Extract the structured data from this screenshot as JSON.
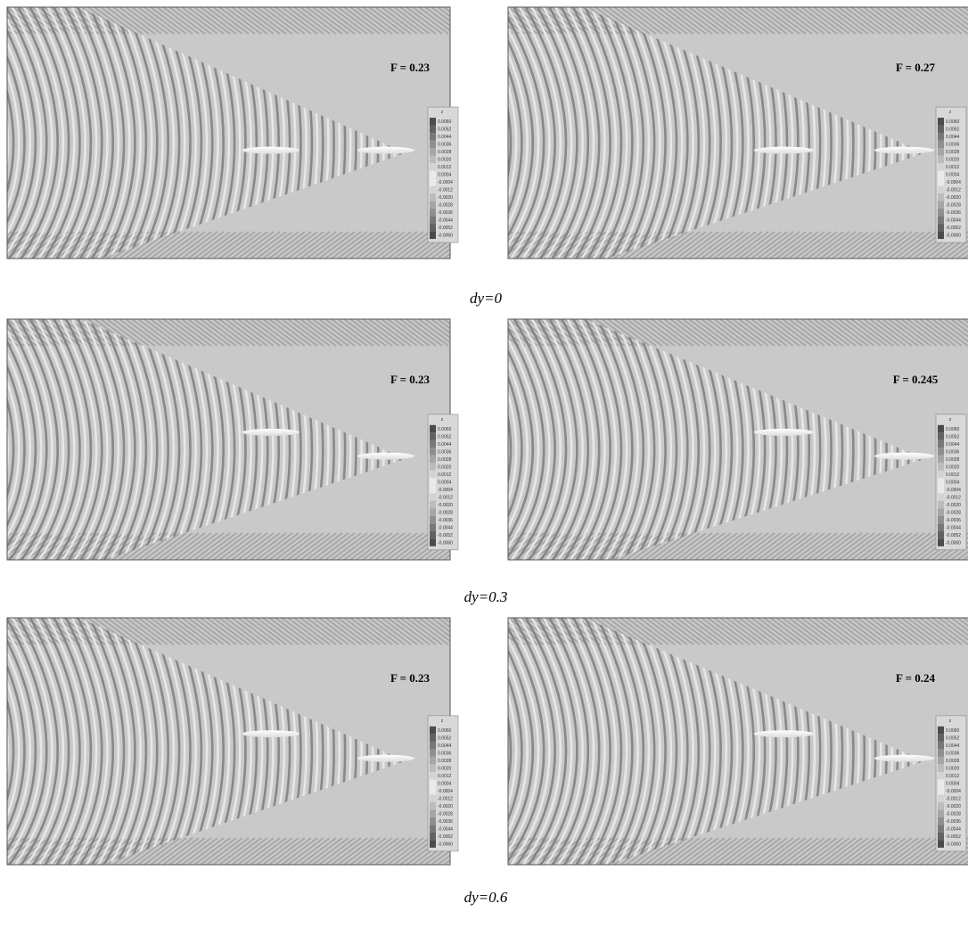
{
  "rows": [
    {
      "label": "dy=0",
      "panels": [
        {
          "label": "F = 0.23"
        },
        {
          "label": "F = 0.27"
        }
      ]
    },
    {
      "label": "dy=0.3",
      "panels": [
        {
          "label": "F = 0.23"
        },
        {
          "label": "F = 0.245"
        }
      ]
    },
    {
      "label": "dy=0.6",
      "panels": [
        {
          "label": "F = 0.23"
        },
        {
          "label": "F = 0.24"
        }
      ]
    }
  ],
  "colorbar": {
    "title": "z",
    "labels": [
      "0.0060",
      "0.0052",
      "0.0044",
      "0.0036",
      "0.0028",
      "0.0020",
      "0.0012",
      "0.0004",
      "-0.0004",
      "-0.0012",
      "-0.0020",
      "-0.0028",
      "-0.0036",
      "-0.0044",
      "-0.0052",
      "-0.0060"
    ]
  }
}
